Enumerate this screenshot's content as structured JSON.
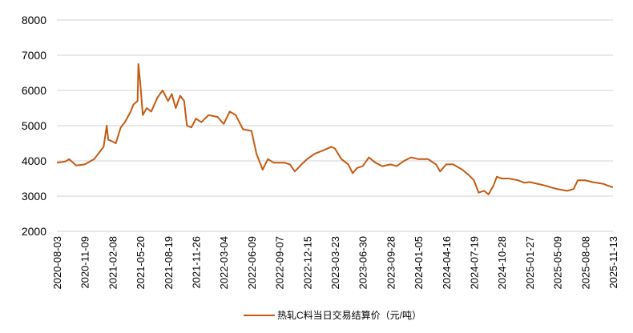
{
  "chart_data": {
    "type": "line",
    "title": "",
    "xlabel": "",
    "ylabel": "",
    "ylim": [
      2000,
      8000
    ],
    "yticks": [
      2000,
      3000,
      4000,
      5000,
      6000,
      7000,
      8000
    ],
    "xticks": [
      "2020-08-03",
      "2020-11-09",
      "2021-02-08",
      "2021-05-20",
      "2021-08-19",
      "2021-11-26",
      "2022-03-04",
      "2022-06-09",
      "2022-09-07",
      "2022-12-15",
      "2023-03-23",
      "2023-06-30",
      "2023-09-28",
      "2024-01-05",
      "2024-04-16",
      "2024-07-19",
      "2024-10-28",
      "2025-01-27",
      "2025-05-09",
      "2025-08-08",
      "2025-11-13"
    ],
    "grid": "horizontal",
    "legend_position": "bottom",
    "color": "#C55A11",
    "series": [
      {
        "name": "热轧C料当日交易结算价（元/吨）",
        "x": [
          "2020-08-03",
          "2020-09-01",
          "2020-09-15",
          "2020-10-10",
          "2020-11-09",
          "2020-12-10",
          "2021-01-10",
          "2021-01-20",
          "2021-01-25",
          "2021-02-08",
          "2021-02-20",
          "2021-03-10",
          "2021-03-25",
          "2021-04-15",
          "2021-04-25",
          "2021-05-10",
          "2021-05-13",
          "2021-05-20",
          "2021-05-28",
          "2021-06-10",
          "2021-06-25",
          "2021-07-15",
          "2021-08-01",
          "2021-08-19",
          "2021-09-01",
          "2021-09-15",
          "2021-10-01",
          "2021-10-15",
          "2021-10-25",
          "2021-11-10",
          "2021-11-26",
          "2021-12-15",
          "2022-01-10",
          "2022-02-10",
          "2022-03-04",
          "2022-03-25",
          "2022-04-15",
          "2022-05-10",
          "2022-06-09",
          "2022-06-25",
          "2022-07-15",
          "2022-08-01",
          "2022-08-20",
          "2022-09-07",
          "2022-09-25",
          "2022-10-15",
          "2022-11-01",
          "2022-11-25",
          "2022-12-15",
          "2023-01-10",
          "2023-02-10",
          "2023-03-10",
          "2023-03-23",
          "2023-04-15",
          "2023-05-10",
          "2023-05-25",
          "2023-06-10",
          "2023-06-30",
          "2023-07-20",
          "2023-08-10",
          "2023-09-01",
          "2023-09-28",
          "2023-10-20",
          "2023-11-15",
          "2023-12-10",
          "2024-01-05",
          "2024-02-10",
          "2024-03-10",
          "2024-03-25",
          "2024-04-16",
          "2024-05-10",
          "2024-06-10",
          "2024-07-01",
          "2024-07-19",
          "2024-08-05",
          "2024-08-25",
          "2024-09-10",
          "2024-09-28",
          "2024-10-10",
          "2024-10-28",
          "2024-11-20",
          "2024-12-20",
          "2025-01-10",
          "2025-01-27",
          "2025-02-25",
          "2025-03-25",
          "2025-04-15",
          "2025-05-09",
          "2025-06-10",
          "2025-07-01",
          "2025-07-15",
          "2025-08-08",
          "2025-09-01",
          "2025-10-10",
          "2025-10-25",
          "2025-11-13"
        ],
        "y": [
          3950,
          3980,
          4050,
          3870,
          3900,
          4050,
          4400,
          5000,
          4600,
          4550,
          4500,
          4950,
          5100,
          5400,
          5600,
          5700,
          6750,
          6200,
          5300,
          5500,
          5400,
          5800,
          6000,
          5700,
          5900,
          5500,
          5850,
          5700,
          5000,
          4950,
          5200,
          5100,
          5300,
          5250,
          5050,
          5400,
          5300,
          4900,
          4850,
          4200,
          3750,
          4050,
          3950,
          3950,
          3950,
          3900,
          3700,
          3900,
          4050,
          4200,
          4300,
          4400,
          4350,
          4050,
          3900,
          3650,
          3800,
          3850,
          4100,
          3950,
          3850,
          3900,
          3850,
          4000,
          4100,
          4050,
          4050,
          3900,
          3700,
          3900,
          3900,
          3750,
          3600,
          3450,
          3100,
          3150,
          3050,
          3300,
          3550,
          3500,
          3500,
          3450,
          3380,
          3400,
          3350,
          3300,
          3250,
          3200,
          3150,
          3200,
          3450,
          3450,
          3400,
          3350,
          3300,
          3250
        ]
      }
    ]
  }
}
